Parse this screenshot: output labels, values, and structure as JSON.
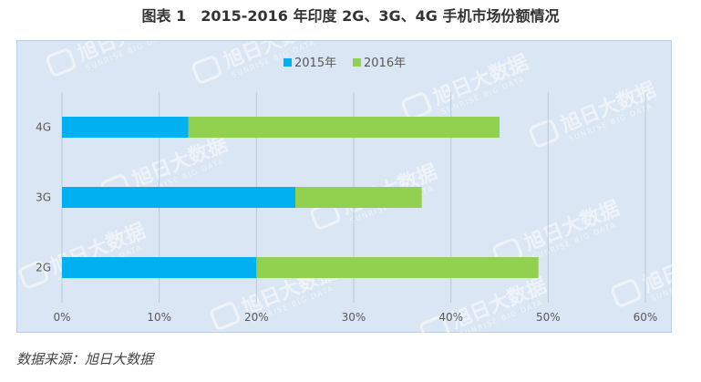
{
  "title": "图表 1　2015-2016 年印度 2G、3G、4G 手机市场份额情况",
  "source": "数据来源：旭日大数据",
  "watermark": {
    "text": "旭日大数据",
    "subtext": "SUNRISE BIG DATA"
  },
  "colors": {
    "series_2015": "#00b0f0",
    "series_2016": "#92d050",
    "plot_bg": "#dae6f3",
    "grid": "#b9c9da",
    "tick_text": "#595959",
    "watermark": "#ffffff"
  },
  "chart_data": {
    "type": "bar",
    "orientation": "horizontal",
    "stacked": true,
    "title": "",
    "xlabel": "",
    "ylabel": "",
    "categories": [
      "4G",
      "3G",
      "2G"
    ],
    "series": [
      {
        "name": "2015年",
        "values": [
          13,
          24,
          20
        ]
      },
      {
        "name": "2016年",
        "values": [
          32,
          13,
          29
        ]
      }
    ],
    "xlim": [
      0,
      60
    ],
    "xticks": [
      "0%",
      "10%",
      "20%",
      "30%",
      "40%",
      "50%",
      "60%"
    ],
    "grid": "vertical",
    "legend_position": "top"
  }
}
